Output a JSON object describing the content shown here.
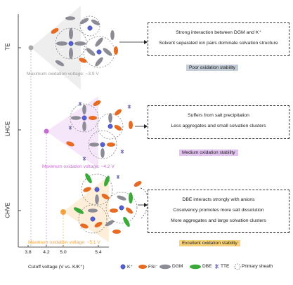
{
  "rows": [
    {
      "label": "TE",
      "max_voltage": "Maximum oxidation voltage: ~3.9 V",
      "color": "#9a9a9a",
      "lines": [
        "Strong interaction between DGM and K⁺",
        "Solvent separated ion pairs dominate solvation structure"
      ],
      "stability": "Poor oxidation stability",
      "stability_color": "#c5ced8"
    },
    {
      "label": "LHCE",
      "max_voltage": "Maximum oxidation voltage: ~4.2 V",
      "color": "#c86ad4",
      "lines": [
        "Suffers from salt precipitation",
        "Less aggregates and small solvation clusters"
      ],
      "stability": "Medium oxidation stability",
      "stability_color": "#e2c2ef"
    },
    {
      "label": "CHVE",
      "max_voltage": "Maximum oxidation voltage: ~5.1 V",
      "color": "#f0a23c",
      "lines": [
        "DBE interacts strongly with anions",
        "Cosolvency promotes more salt dissolution",
        "More aggregates and large solvation clusters"
      ],
      "stability": "Excellent oxidation stability",
      "stability_color": "#f7d27a"
    }
  ],
  "axis": {
    "ticks": [
      "3.8",
      "4.2",
      "5.0",
      "5.4"
    ],
    "label": "Cutoff voltage (V vs. K/K⁺)"
  },
  "legend": [
    {
      "symbol": "circle",
      "color": "#5560d6",
      "label": "K⁺"
    },
    {
      "symbol": "ellipse",
      "color": "#e66a22",
      "label": "FSI⁻"
    },
    {
      "symbol": "ellipse",
      "color": "#8c8c96",
      "label": "DGM"
    },
    {
      "symbol": "ellipse",
      "color": "#3aaa3a",
      "label": "DBE"
    },
    {
      "symbol": "star",
      "color": "#6a6aa8",
      "label": "TTE"
    },
    {
      "symbol": "dashed-circle",
      "color": "#555555",
      "label": "Primary sheath"
    }
  ]
}
